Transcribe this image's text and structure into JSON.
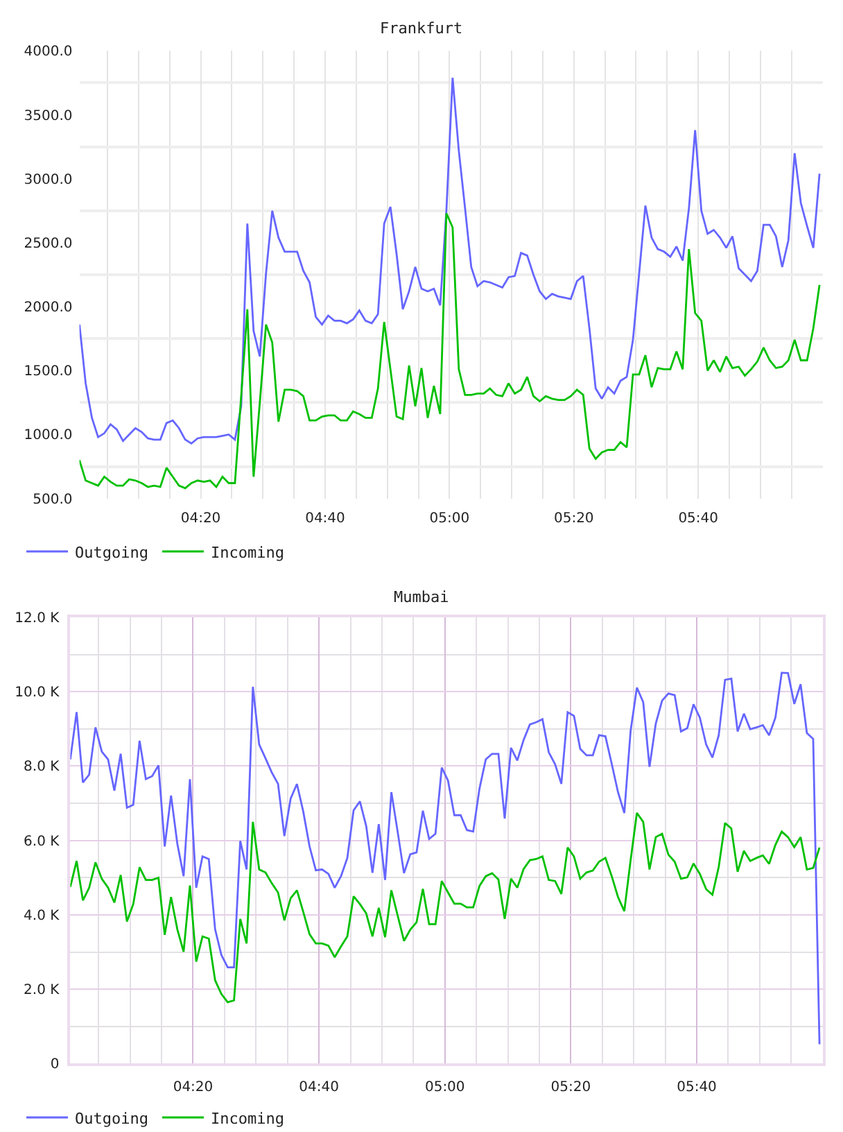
{
  "chart_data": [
    {
      "type": "line",
      "title": "Frankfurt",
      "x": [
        4.0083,
        4.025,
        4.0417,
        4.0583,
        4.075,
        4.0917,
        4.1083,
        4.125,
        4.1417,
        4.1583,
        4.175,
        4.1917,
        4.2083,
        4.225,
        4.2417,
        4.2583,
        4.275,
        4.2917,
        4.3083,
        4.325,
        4.3417,
        4.3583,
        4.375,
        4.3917,
        4.4083,
        4.425,
        4.4417,
        4.4583,
        4.475,
        4.4917,
        4.5083,
        4.525,
        4.5417,
        4.5583,
        4.575,
        4.5917,
        4.6083,
        4.625,
        4.6417,
        4.6583,
        4.675,
        4.6917,
        4.7083,
        4.725,
        4.7417,
        4.7583,
        4.775,
        4.7917,
        4.8083,
        4.825,
        4.8417,
        4.8583,
        4.875,
        4.8917,
        4.9083,
        4.925,
        4.9417,
        4.9583,
        4.975,
        4.9917,
        5.0083,
        5.025,
        5.0417,
        5.0583,
        5.075,
        5.0917,
        5.1083,
        5.125,
        5.1417,
        5.1583,
        5.175,
        5.1917,
        5.2083,
        5.225,
        5.2417,
        5.2583,
        5.275,
        5.2917,
        5.3083,
        5.325,
        5.3417,
        5.3583,
        5.375,
        5.3917,
        5.4083,
        5.425,
        5.4417,
        5.4583,
        5.475,
        5.4917,
        5.5083,
        5.525,
        5.5417,
        5.5583,
        5.575,
        5.5917,
        5.6083,
        5.625,
        5.6417,
        5.6583,
        5.675,
        5.6917,
        5.7083,
        5.725,
        5.7417,
        5.7583,
        5.775,
        5.7917,
        5.8083,
        5.825,
        5.8417,
        5.8583,
        5.875,
        5.8917,
        5.9083,
        5.925,
        5.9417,
        5.9583,
        5.975,
        5.9917
      ],
      "series": [
        {
          "name": "Outgoing",
          "color": "#6666ff",
          "values": [
            1860,
            1400,
            1130,
            980,
            1010,
            1080,
            1040,
            950,
            1000,
            1050,
            1020,
            970,
            960,
            960,
            1090,
            1110,
            1050,
            960,
            930,
            970,
            980,
            980,
            980,
            990,
            1000,
            960,
            1220,
            2650,
            1810,
            1610,
            2260,
            2750,
            2540,
            2430,
            2430,
            2430,
            2280,
            2190,
            1920,
            1860,
            1930,
            1890,
            1890,
            1870,
            1900,
            1970,
            1890,
            1870,
            1940,
            2650,
            2780,
            2410,
            1980,
            2120,
            2310,
            2140,
            2120,
            2140,
            2010,
            2750,
            3790,
            3220,
            2770,
            2310,
            2160,
            2200,
            2190,
            2170,
            2150,
            2230,
            2240,
            2420,
            2400,
            2250,
            2120,
            2060,
            2100,
            2080,
            2070,
            2060,
            2200,
            2240,
            1830,
            1360,
            1280,
            1370,
            1320,
            1420,
            1450,
            1740,
            2260,
            2790,
            2540,
            2450,
            2430,
            2390,
            2470,
            2360,
            2770,
            3380,
            2750,
            2570,
            2600,
            2540,
            2460,
            2550,
            2300,
            2250,
            2200,
            2280,
            2640,
            2640,
            2550,
            2310,
            2520,
            3200,
            2810,
            2630,
            2460,
            3040
          ]
        },
        {
          "name": "Incoming",
          "color": "#00c000",
          "values": [
            800,
            640,
            620,
            600,
            670,
            630,
            600,
            600,
            650,
            640,
            620,
            590,
            600,
            590,
            740,
            670,
            600,
            580,
            620,
            640,
            630,
            640,
            590,
            670,
            620,
            620,
            1300,
            1980,
            670,
            1250,
            1860,
            1720,
            1100,
            1350,
            1350,
            1340,
            1300,
            1110,
            1110,
            1140,
            1150,
            1150,
            1110,
            1110,
            1180,
            1160,
            1130,
            1130,
            1360,
            1880,
            1510,
            1140,
            1120,
            1540,
            1220,
            1520,
            1130,
            1380,
            1160,
            2730,
            2620,
            1510,
            1310,
            1310,
            1320,
            1320,
            1360,
            1310,
            1300,
            1400,
            1320,
            1350,
            1450,
            1300,
            1260,
            1300,
            1280,
            1270,
            1270,
            1300,
            1350,
            1310,
            890,
            810,
            860,
            880,
            880,
            940,
            900,
            1470,
            1470,
            1620,
            1370,
            1520,
            1510,
            1510,
            1650,
            1510,
            2450,
            1950,
            1890,
            1500,
            1580,
            1490,
            1610,
            1520,
            1530,
            1460,
            1510,
            1570,
            1680,
            1580,
            1520,
            1530,
            1580,
            1740,
            1580,
            1580,
            1830,
            2170
          ]
        }
      ],
      "xlim": [
        4.0083,
        6.0
      ],
      "xticks": [
        {
          "value": 4.0833,
          "label": null
        },
        {
          "value": 4.1667,
          "label": null
        },
        {
          "value": 4.25,
          "label": null
        },
        {
          "value": 4.3333,
          "label": "04:20"
        },
        {
          "value": 4.4167,
          "label": null
        },
        {
          "value": 4.5,
          "label": null
        },
        {
          "value": 4.5833,
          "label": null
        },
        {
          "value": 4.6667,
          "label": "04:40"
        },
        {
          "value": 4.75,
          "label": null
        },
        {
          "value": 4.8333,
          "label": null
        },
        {
          "value": 4.9167,
          "label": null
        },
        {
          "value": 5,
          "label": "05:00"
        },
        {
          "value": 5.0833,
          "label": null
        },
        {
          "value": 5.1667,
          "label": null
        },
        {
          "value": 5.25,
          "label": null
        },
        {
          "value": 5.3333,
          "label": "05:20"
        },
        {
          "value": 5.4167,
          "label": null
        },
        {
          "value": 5.5,
          "label": null
        },
        {
          "value": 5.5833,
          "label": null
        },
        {
          "value": 5.6667,
          "label": "05:40"
        },
        {
          "value": 5.75,
          "label": null
        },
        {
          "value": 5.8333,
          "label": null
        },
        {
          "value": 5.9167,
          "label": null
        }
      ],
      "ylim": [
        500,
        4000
      ],
      "yticks": [
        {
          "value": 500,
          "label": "500.0"
        },
        {
          "value": 750,
          "label": null
        },
        {
          "value": 1000,
          "label": "1000.0"
        },
        {
          "value": 1250,
          "label": null
        },
        {
          "value": 1500,
          "label": "1500.0"
        },
        {
          "value": 1750,
          "label": null
        },
        {
          "value": 2000,
          "label": "2000.0"
        },
        {
          "value": 2250,
          "label": null
        },
        {
          "value": 2500,
          "label": "2500.0"
        },
        {
          "value": 2750,
          "label": null
        },
        {
          "value": 3000,
          "label": "3000.0"
        },
        {
          "value": 3250,
          "label": null
        },
        {
          "value": 3500,
          "label": "3500.0"
        },
        {
          "value": 3750,
          "label": null
        },
        {
          "value": 4000,
          "label": "4000.0"
        }
      ],
      "grid": true,
      "legend": "bottom left"
    },
    {
      "type": "line",
      "title": "Mumbai",
      "x": [
        4.0083,
        4.025,
        4.0417,
        4.0583,
        4.075,
        4.0917,
        4.1083,
        4.125,
        4.1417,
        4.1583,
        4.175,
        4.1917,
        4.2083,
        4.225,
        4.2417,
        4.2583,
        4.275,
        4.2917,
        4.3083,
        4.325,
        4.3417,
        4.3583,
        4.375,
        4.3917,
        4.4083,
        4.425,
        4.4417,
        4.4583,
        4.475,
        4.4917,
        4.5083,
        4.525,
        4.5417,
        4.5583,
        4.575,
        4.5917,
        4.6083,
        4.625,
        4.6417,
        4.6583,
        4.675,
        4.6917,
        4.7083,
        4.725,
        4.7417,
        4.7583,
        4.775,
        4.7917,
        4.8083,
        4.825,
        4.8417,
        4.8583,
        4.875,
        4.8917,
        4.9083,
        4.925,
        4.9417,
        4.9583,
        4.975,
        4.9917,
        5.0083,
        5.025,
        5.0417,
        5.0583,
        5.075,
        5.0917,
        5.1083,
        5.125,
        5.1417,
        5.1583,
        5.175,
        5.1917,
        5.2083,
        5.225,
        5.2417,
        5.2583,
        5.275,
        5.2917,
        5.3083,
        5.325,
        5.3417,
        5.3583,
        5.375,
        5.3917,
        5.4083,
        5.425,
        5.4417,
        5.4583,
        5.475,
        5.4917,
        5.5083,
        5.525,
        5.5417,
        5.5583,
        5.575,
        5.5917,
        5.6083,
        5.625,
        5.6417,
        5.6583,
        5.675,
        5.6917,
        5.7083,
        5.725,
        5.7417,
        5.7583,
        5.775,
        5.7917,
        5.8083,
        5.825,
        5.8417,
        5.8583,
        5.875,
        5.8917,
        5.9083,
        5.925,
        5.9417,
        5.9583,
        5.975,
        5.9917
      ],
      "series": [
        {
          "name": "Outgoing",
          "color": "#6666ff",
          "values": [
            8180,
            9450,
            7560,
            7770,
            9040,
            8390,
            8180,
            7340,
            8330,
            6880,
            6960,
            8680,
            7650,
            7730,
            8020,
            5840,
            7210,
            5910,
            5040,
            7650,
            4730,
            5570,
            5500,
            3610,
            2920,
            2590,
            2590,
            5990,
            5220,
            10130,
            8580,
            8210,
            7830,
            7520,
            6120,
            7130,
            7520,
            6780,
            5840,
            5200,
            5220,
            5100,
            4730,
            5040,
            5530,
            6810,
            7050,
            6390,
            5130,
            6440,
            4940,
            7300,
            6230,
            5120,
            5630,
            5680,
            6800,
            6040,
            6180,
            7960,
            7610,
            6680,
            6680,
            6280,
            6240,
            7400,
            8180,
            8330,
            8330,
            6590,
            8490,
            8150,
            8700,
            9120,
            9180,
            9260,
            8370,
            8050,
            7520,
            9450,
            9350,
            8460,
            8290,
            8290,
            8830,
            8800,
            8060,
            7300,
            6740,
            8950,
            10110,
            9720,
            7980,
            9140,
            9760,
            9950,
            9910,
            8930,
            9020,
            9660,
            9300,
            8580,
            8230,
            8830,
            10320,
            10350,
            8930,
            9410,
            8990,
            9040,
            9100,
            8830,
            9300,
            10510,
            10500,
            9670,
            10200,
            8890,
            8730,
            520
          ]
        },
        {
          "name": "Incoming",
          "color": "#00c000",
          "values": [
            4750,
            5450,
            4390,
            4730,
            5410,
            4970,
            4730,
            4330,
            5070,
            3820,
            4290,
            5280,
            4940,
            4940,
            5000,
            3460,
            4480,
            3610,
            3010,
            4790,
            2740,
            3420,
            3360,
            2240,
            1870,
            1650,
            1700,
            3890,
            3230,
            6500,
            5220,
            5140,
            4850,
            4600,
            3850,
            4450,
            4660,
            4080,
            3480,
            3230,
            3230,
            3170,
            2860,
            3150,
            3420,
            4500,
            4290,
            4040,
            3420,
            4190,
            3400,
            4660,
            3980,
            3300,
            3600,
            3800,
            4700,
            3750,
            3750,
            4910,
            4600,
            4300,
            4300,
            4200,
            4200,
            4780,
            5040,
            5120,
            4950,
            3890,
            4970,
            4730,
            5230,
            5470,
            5500,
            5570,
            4940,
            4910,
            4560,
            5810,
            5570,
            4970,
            5140,
            5190,
            5430,
            5530,
            5040,
            4480,
            4100,
            5470,
            6740,
            6500,
            5220,
            6090,
            6180,
            5620,
            5430,
            4970,
            5010,
            5380,
            5100,
            4690,
            4540,
            5290,
            6470,
            6320,
            5160,
            5720,
            5450,
            5530,
            5600,
            5370,
            5880,
            6240,
            6090,
            5820,
            6090,
            5220,
            5260,
            5810
          ]
        }
      ],
      "xlim": [
        4.0083,
        6.0
      ],
      "xticks": [
        {
          "value": 4.0833,
          "label": null
        },
        {
          "value": 4.1667,
          "label": null
        },
        {
          "value": 4.25,
          "label": null
        },
        {
          "value": 4.3333,
          "label": "04:20"
        },
        {
          "value": 4.4167,
          "label": null
        },
        {
          "value": 4.5,
          "label": null
        },
        {
          "value": 4.5833,
          "label": null
        },
        {
          "value": 4.6667,
          "label": "04:40"
        },
        {
          "value": 4.75,
          "label": null
        },
        {
          "value": 4.8333,
          "label": null
        },
        {
          "value": 4.9167,
          "label": null
        },
        {
          "value": 5,
          "label": "05:00"
        },
        {
          "value": 5.0833,
          "label": null
        },
        {
          "value": 5.1667,
          "label": null
        },
        {
          "value": 5.25,
          "label": null
        },
        {
          "value": 5.3333,
          "label": "05:20"
        },
        {
          "value": 5.4167,
          "label": null
        },
        {
          "value": 5.5,
          "label": null
        },
        {
          "value": 5.5833,
          "label": null
        },
        {
          "value": 5.6667,
          "label": "05:40"
        },
        {
          "value": 5.75,
          "label": null
        },
        {
          "value": 5.8333,
          "label": null
        },
        {
          "value": 5.9167,
          "label": null
        }
      ],
      "ylim": [
        0,
        12000
      ],
      "yticks": [
        0,
        {
          "value": 1000,
          "label": null
        },
        {
          "value": 2000,
          "label": "2.0 K"
        },
        {
          "value": 3000,
          "label": null
        },
        {
          "value": 4000,
          "label": "4.0 K"
        },
        {
          "value": 5000,
          "label": null
        },
        {
          "value": 6000,
          "label": "6.0 K"
        },
        {
          "value": 7000,
          "label": null
        },
        {
          "value": 8000,
          "label": "8.0 K"
        },
        {
          "value": 9000,
          "label": null
        },
        {
          "value": 10000,
          "label": "10.0 K"
        },
        {
          "value": 11000,
          "label": null
        },
        {
          "value": 12000,
          "label": "12.0 K"
        }
      ],
      "grid": true,
      "legend": "bottom left"
    }
  ]
}
